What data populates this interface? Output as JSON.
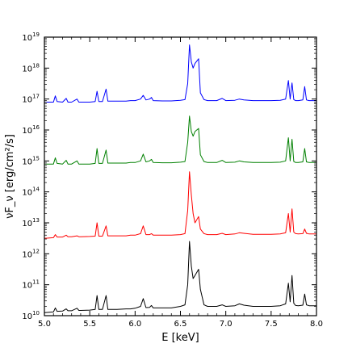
{
  "chart_data": {
    "type": "line",
    "title": "",
    "xlabel": "E [keV]",
    "ylabel": "νF_ν [erg/cm²/s]",
    "xlim": [
      5.0,
      8.0
    ],
    "ylim_log10": [
      10,
      19
    ],
    "yscale": "log",
    "grid": false,
    "legend": "none",
    "x_ticks": [
      "5.0",
      "5.5",
      "6.0",
      "6.5",
      "7.0",
      "7.5",
      "8.0"
    ],
    "x_tick_values": [
      5.0,
      5.5,
      6.0,
      6.5,
      7.0,
      7.5,
      8.0
    ],
    "y_ticks": [
      {
        "base": "10",
        "exp": "10",
        "value": 10
      },
      {
        "base": "10",
        "exp": "11",
        "value": 11
      },
      {
        "base": "10",
        "exp": "12",
        "value": 12
      },
      {
        "base": "10",
        "exp": "13",
        "value": 13
      },
      {
        "base": "10",
        "exp": "14",
        "value": 14
      },
      {
        "base": "10",
        "exp": "15",
        "value": 15
      },
      {
        "base": "10",
        "exp": "16",
        "value": 16
      },
      {
        "base": "10",
        "exp": "17",
        "value": 17
      },
      {
        "base": "10",
        "exp": "18",
        "value": 18
      },
      {
        "base": "10",
        "exp": "19",
        "value": 19
      }
    ],
    "series": [
      {
        "color": "#0000ff",
        "x": [
          5.0,
          5.1,
          5.12,
          5.14,
          5.2,
          5.24,
          5.26,
          5.3,
          5.36,
          5.38,
          5.4,
          5.5,
          5.56,
          5.58,
          5.6,
          5.64,
          5.68,
          5.7,
          5.8,
          5.9,
          5.95,
          6.0,
          6.06,
          6.09,
          6.12,
          6.16,
          6.18,
          6.2,
          6.3,
          6.4,
          6.5,
          6.55,
          6.58,
          6.6,
          6.62,
          6.64,
          6.66,
          6.7,
          6.72,
          6.76,
          6.8,
          6.9,
          6.96,
          7.0,
          7.1,
          7.15,
          7.2,
          7.3,
          7.4,
          7.5,
          7.6,
          7.66,
          7.69,
          7.71,
          7.73,
          7.75,
          7.77,
          7.8,
          7.85,
          7.87,
          7.89,
          7.92,
          8.0
        ],
        "y": [
          16.9,
          16.9,
          17.1,
          16.92,
          16.9,
          17.02,
          16.9,
          16.9,
          17.0,
          16.9,
          16.9,
          16.9,
          16.92,
          17.25,
          16.92,
          16.92,
          17.32,
          16.93,
          16.93,
          16.93,
          16.95,
          16.95,
          17.0,
          17.12,
          16.97,
          17.0,
          17.05,
          16.95,
          16.94,
          16.94,
          16.96,
          16.98,
          17.5,
          18.75,
          18.2,
          18.0,
          18.15,
          18.3,
          17.2,
          16.98,
          16.95,
          16.95,
          17.02,
          16.95,
          16.96,
          17.0,
          16.97,
          16.95,
          16.95,
          16.95,
          16.96,
          17.0,
          17.6,
          17.0,
          17.52,
          16.98,
          16.95,
          16.95,
          16.97,
          17.4,
          16.97,
          16.95,
          16.95
        ]
      },
      {
        "color": "#008000",
        "x": [
          5.0,
          5.1,
          5.12,
          5.14,
          5.2,
          5.24,
          5.26,
          5.3,
          5.36,
          5.38,
          5.4,
          5.5,
          5.56,
          5.58,
          5.6,
          5.64,
          5.68,
          5.7,
          5.8,
          5.9,
          5.95,
          6.0,
          6.06,
          6.09,
          6.12,
          6.16,
          6.18,
          6.2,
          6.3,
          6.4,
          6.5,
          6.55,
          6.58,
          6.6,
          6.62,
          6.64,
          6.66,
          6.7,
          6.72,
          6.76,
          6.8,
          6.9,
          6.96,
          7.0,
          7.1,
          7.15,
          7.2,
          7.3,
          7.4,
          7.5,
          7.6,
          7.66,
          7.69,
          7.71,
          7.73,
          7.75,
          7.77,
          7.8,
          7.85,
          7.87,
          7.89,
          7.92,
          8.0
        ],
        "y": [
          14.9,
          14.9,
          15.1,
          14.92,
          14.9,
          15.02,
          14.9,
          14.9,
          15.0,
          14.9,
          14.9,
          14.9,
          14.92,
          15.4,
          14.92,
          14.92,
          15.35,
          14.93,
          14.93,
          14.93,
          14.95,
          14.95,
          15.0,
          15.22,
          14.97,
          15.0,
          15.05,
          14.95,
          14.94,
          14.94,
          14.96,
          14.98,
          15.6,
          16.45,
          15.95,
          15.8,
          15.95,
          16.05,
          15.2,
          14.98,
          14.95,
          14.95,
          15.02,
          14.95,
          14.96,
          15.0,
          14.97,
          14.95,
          14.95,
          14.95,
          14.96,
          15.0,
          15.75,
          15.0,
          15.7,
          14.98,
          14.95,
          14.95,
          14.97,
          15.4,
          14.97,
          14.95,
          14.95
        ]
      },
      {
        "color": "#ff0000",
        "x": [
          5.0,
          5.1,
          5.12,
          5.14,
          5.2,
          5.24,
          5.26,
          5.3,
          5.36,
          5.38,
          5.4,
          5.5,
          5.56,
          5.58,
          5.6,
          5.64,
          5.68,
          5.7,
          5.8,
          5.9,
          5.95,
          6.0,
          6.06,
          6.09,
          6.12,
          6.16,
          6.18,
          6.2,
          6.3,
          6.4,
          6.5,
          6.55,
          6.58,
          6.6,
          6.62,
          6.64,
          6.66,
          6.7,
          6.72,
          6.76,
          6.8,
          6.9,
          6.96,
          7.0,
          7.1,
          7.15,
          7.2,
          7.3,
          7.4,
          7.5,
          7.6,
          7.66,
          7.69,
          7.71,
          7.73,
          7.75,
          7.77,
          7.8,
          7.85,
          7.87,
          7.89,
          7.92,
          8.0
        ],
        "y": [
          12.5,
          12.52,
          12.62,
          12.54,
          12.54,
          12.6,
          12.55,
          12.55,
          12.58,
          12.55,
          12.55,
          12.56,
          12.57,
          13.0,
          12.57,
          12.57,
          12.9,
          12.58,
          12.58,
          12.58,
          12.6,
          12.6,
          12.65,
          12.9,
          12.62,
          12.62,
          12.65,
          12.6,
          12.6,
          12.6,
          12.62,
          12.65,
          13.4,
          14.65,
          13.9,
          13.3,
          13.0,
          13.2,
          12.8,
          12.65,
          12.62,
          12.62,
          12.66,
          12.62,
          12.64,
          12.68,
          12.66,
          12.63,
          12.63,
          12.63,
          12.64,
          12.68,
          13.3,
          12.7,
          13.45,
          12.7,
          12.65,
          12.64,
          12.65,
          12.8,
          12.66,
          12.64,
          12.64
        ]
      },
      {
        "color": "#000000",
        "x": [
          5.0,
          5.1,
          5.12,
          5.14,
          5.2,
          5.24,
          5.26,
          5.3,
          5.36,
          5.38,
          5.4,
          5.5,
          5.56,
          5.58,
          5.6,
          5.64,
          5.68,
          5.7,
          5.8,
          5.9,
          5.95,
          6.0,
          6.06,
          6.09,
          6.12,
          6.16,
          6.18,
          6.2,
          6.3,
          6.4,
          6.5,
          6.55,
          6.58,
          6.6,
          6.62,
          6.64,
          6.66,
          6.7,
          6.72,
          6.76,
          6.8,
          6.9,
          6.96,
          7.0,
          7.1,
          7.15,
          7.2,
          7.3,
          7.4,
          7.5,
          7.6,
          7.66,
          7.69,
          7.71,
          7.73,
          7.75,
          7.77,
          7.8,
          7.85,
          7.87,
          7.89,
          7.92,
          8.0
        ],
        "y": [
          10.1,
          10.12,
          10.25,
          10.14,
          10.15,
          10.22,
          10.16,
          10.16,
          10.24,
          10.17,
          10.17,
          10.18,
          10.2,
          10.65,
          10.2,
          10.2,
          10.65,
          10.2,
          10.2,
          10.22,
          10.22,
          10.24,
          10.3,
          10.55,
          10.26,
          10.27,
          10.33,
          10.25,
          10.25,
          10.25,
          10.3,
          10.35,
          11.0,
          12.4,
          11.6,
          11.2,
          11.3,
          11.5,
          10.85,
          10.35,
          10.3,
          10.3,
          10.35,
          10.3,
          10.32,
          10.38,
          10.34,
          10.3,
          10.3,
          10.3,
          10.32,
          10.38,
          11.05,
          10.45,
          11.3,
          10.4,
          10.33,
          10.32,
          10.34,
          10.7,
          10.35,
          10.32,
          10.32
        ]
      }
    ]
  }
}
